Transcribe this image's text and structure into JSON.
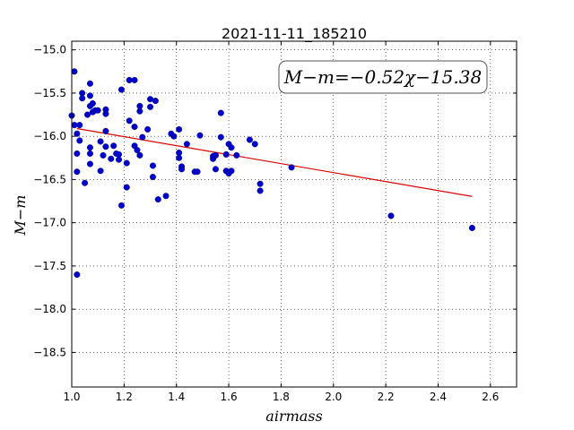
{
  "chart_data": {
    "type": "scatter",
    "title": "2021-11-11_185210",
    "xlabel": "airmass",
    "ylabel": "M−m",
    "xlim": [
      1.0,
      2.7
    ],
    "ylim": [
      -18.9,
      -14.9
    ],
    "y_inverted": true,
    "grid": true,
    "x_ticks": [
      1.0,
      1.2,
      1.4,
      1.6,
      1.8,
      2.0,
      2.2,
      2.4,
      2.6
    ],
    "x_tick_labels": [
      "1.0",
      "1.2",
      "1.4",
      "1.6",
      "1.8",
      "2.0",
      "2.2",
      "2.4",
      "2.6"
    ],
    "y_ticks": [
      -15.0,
      -15.5,
      -16.0,
      -16.5,
      -17.0,
      -17.5,
      -18.0,
      -18.5
    ],
    "y_tick_labels": [
      "−15.0",
      "−15.5",
      "−16.0",
      "−16.5",
      "−17.0",
      "−17.5",
      "−18.0",
      "−18.5"
    ],
    "annotation": "M−m=−0.52χ−15.38",
    "colors": {
      "points": "#0000cc",
      "fit_line": "#dd0000"
    },
    "fit_line": {
      "slope": -0.52,
      "intercept": -15.38,
      "x_start": 1.02,
      "x_end": 2.53
    },
    "points": [
      [
        1.01,
        -15.25
      ],
      [
        1.0,
        -15.76
      ],
      [
        1.01,
        -15.87
      ],
      [
        1.02,
        -15.97
      ],
      [
        1.03,
        -16.05
      ],
      [
        1.03,
        -15.87
      ],
      [
        1.04,
        -15.5
      ],
      [
        1.04,
        -15.56
      ],
      [
        1.02,
        -16.2
      ],
      [
        1.02,
        -16.41
      ],
      [
        1.05,
        -16.54
      ],
      [
        1.02,
        -17.6
      ],
      [
        1.06,
        -15.75
      ],
      [
        1.07,
        -15.39
      ],
      [
        1.07,
        -15.53
      ],
      [
        1.07,
        -15.65
      ],
      [
        1.08,
        -15.72
      ],
      [
        1.08,
        -15.62
      ],
      [
        1.07,
        -16.13
      ],
      [
        1.07,
        -16.2
      ],
      [
        1.07,
        -16.32
      ],
      [
        1.09,
        -15.7
      ],
      [
        1.1,
        -15.7
      ],
      [
        1.11,
        -16.06
      ],
      [
        1.12,
        -16.22
      ],
      [
        1.11,
        -16.4
      ],
      [
        1.13,
        -15.69
      ],
      [
        1.13,
        -15.74
      ],
      [
        1.13,
        -15.94
      ],
      [
        1.13,
        -16.12
      ],
      [
        1.15,
        -16.26
      ],
      [
        1.16,
        -16.11
      ],
      [
        1.17,
        -16.2
      ],
      [
        1.18,
        -16.21
      ],
      [
        1.18,
        -16.27
      ],
      [
        1.19,
        -15.46
      ],
      [
        1.19,
        -16.8
      ],
      [
        1.21,
        -16.59
      ],
      [
        1.21,
        -16.31
      ],
      [
        1.22,
        -15.35
      ],
      [
        1.22,
        -15.82
      ],
      [
        1.24,
        -15.35
      ],
      [
        1.24,
        -15.89
      ],
      [
        1.24,
        -16.11
      ],
      [
        1.25,
        -16.16
      ],
      [
        1.26,
        -15.65
      ],
      [
        1.26,
        -15.71
      ],
      [
        1.26,
        -16.22
      ],
      [
        1.27,
        -16.01
      ],
      [
        1.29,
        -15.92
      ],
      [
        1.3,
        -15.57
      ],
      [
        1.3,
        -15.66
      ],
      [
        1.31,
        -16.34
      ],
      [
        1.31,
        -16.47
      ],
      [
        1.32,
        -15.59
      ],
      [
        1.33,
        -16.73
      ],
      [
        1.36,
        -16.69
      ],
      [
        1.38,
        -15.97
      ],
      [
        1.39,
        -16.0
      ],
      [
        1.41,
        -15.92
      ],
      [
        1.41,
        -16.19
      ],
      [
        1.41,
        -16.25
      ],
      [
        1.42,
        -16.35
      ],
      [
        1.42,
        -16.38
      ],
      [
        1.44,
        -16.09
      ],
      [
        1.47,
        -16.41
      ],
      [
        1.48,
        -16.41
      ],
      [
        1.49,
        -15.99
      ],
      [
        1.54,
        -16.23
      ],
      [
        1.54,
        -16.26
      ],
      [
        1.55,
        -16.22
      ],
      [
        1.55,
        -16.38
      ],
      [
        1.57,
        -15.73
      ],
      [
        1.57,
        -16.01
      ],
      [
        1.59,
        -16.21
      ],
      [
        1.59,
        -16.4
      ],
      [
        1.6,
        -16.09
      ],
      [
        1.6,
        -16.43
      ],
      [
        1.61,
        -16.13
      ],
      [
        1.61,
        -16.4
      ],
      [
        1.63,
        -16.22
      ],
      [
        1.68,
        -16.04
      ],
      [
        1.7,
        -16.09
      ],
      [
        1.72,
        -16.55
      ],
      [
        1.72,
        -16.63
      ],
      [
        1.84,
        -16.36
      ],
      [
        2.22,
        -16.92
      ],
      [
        2.53,
        -17.06
      ]
    ]
  }
}
